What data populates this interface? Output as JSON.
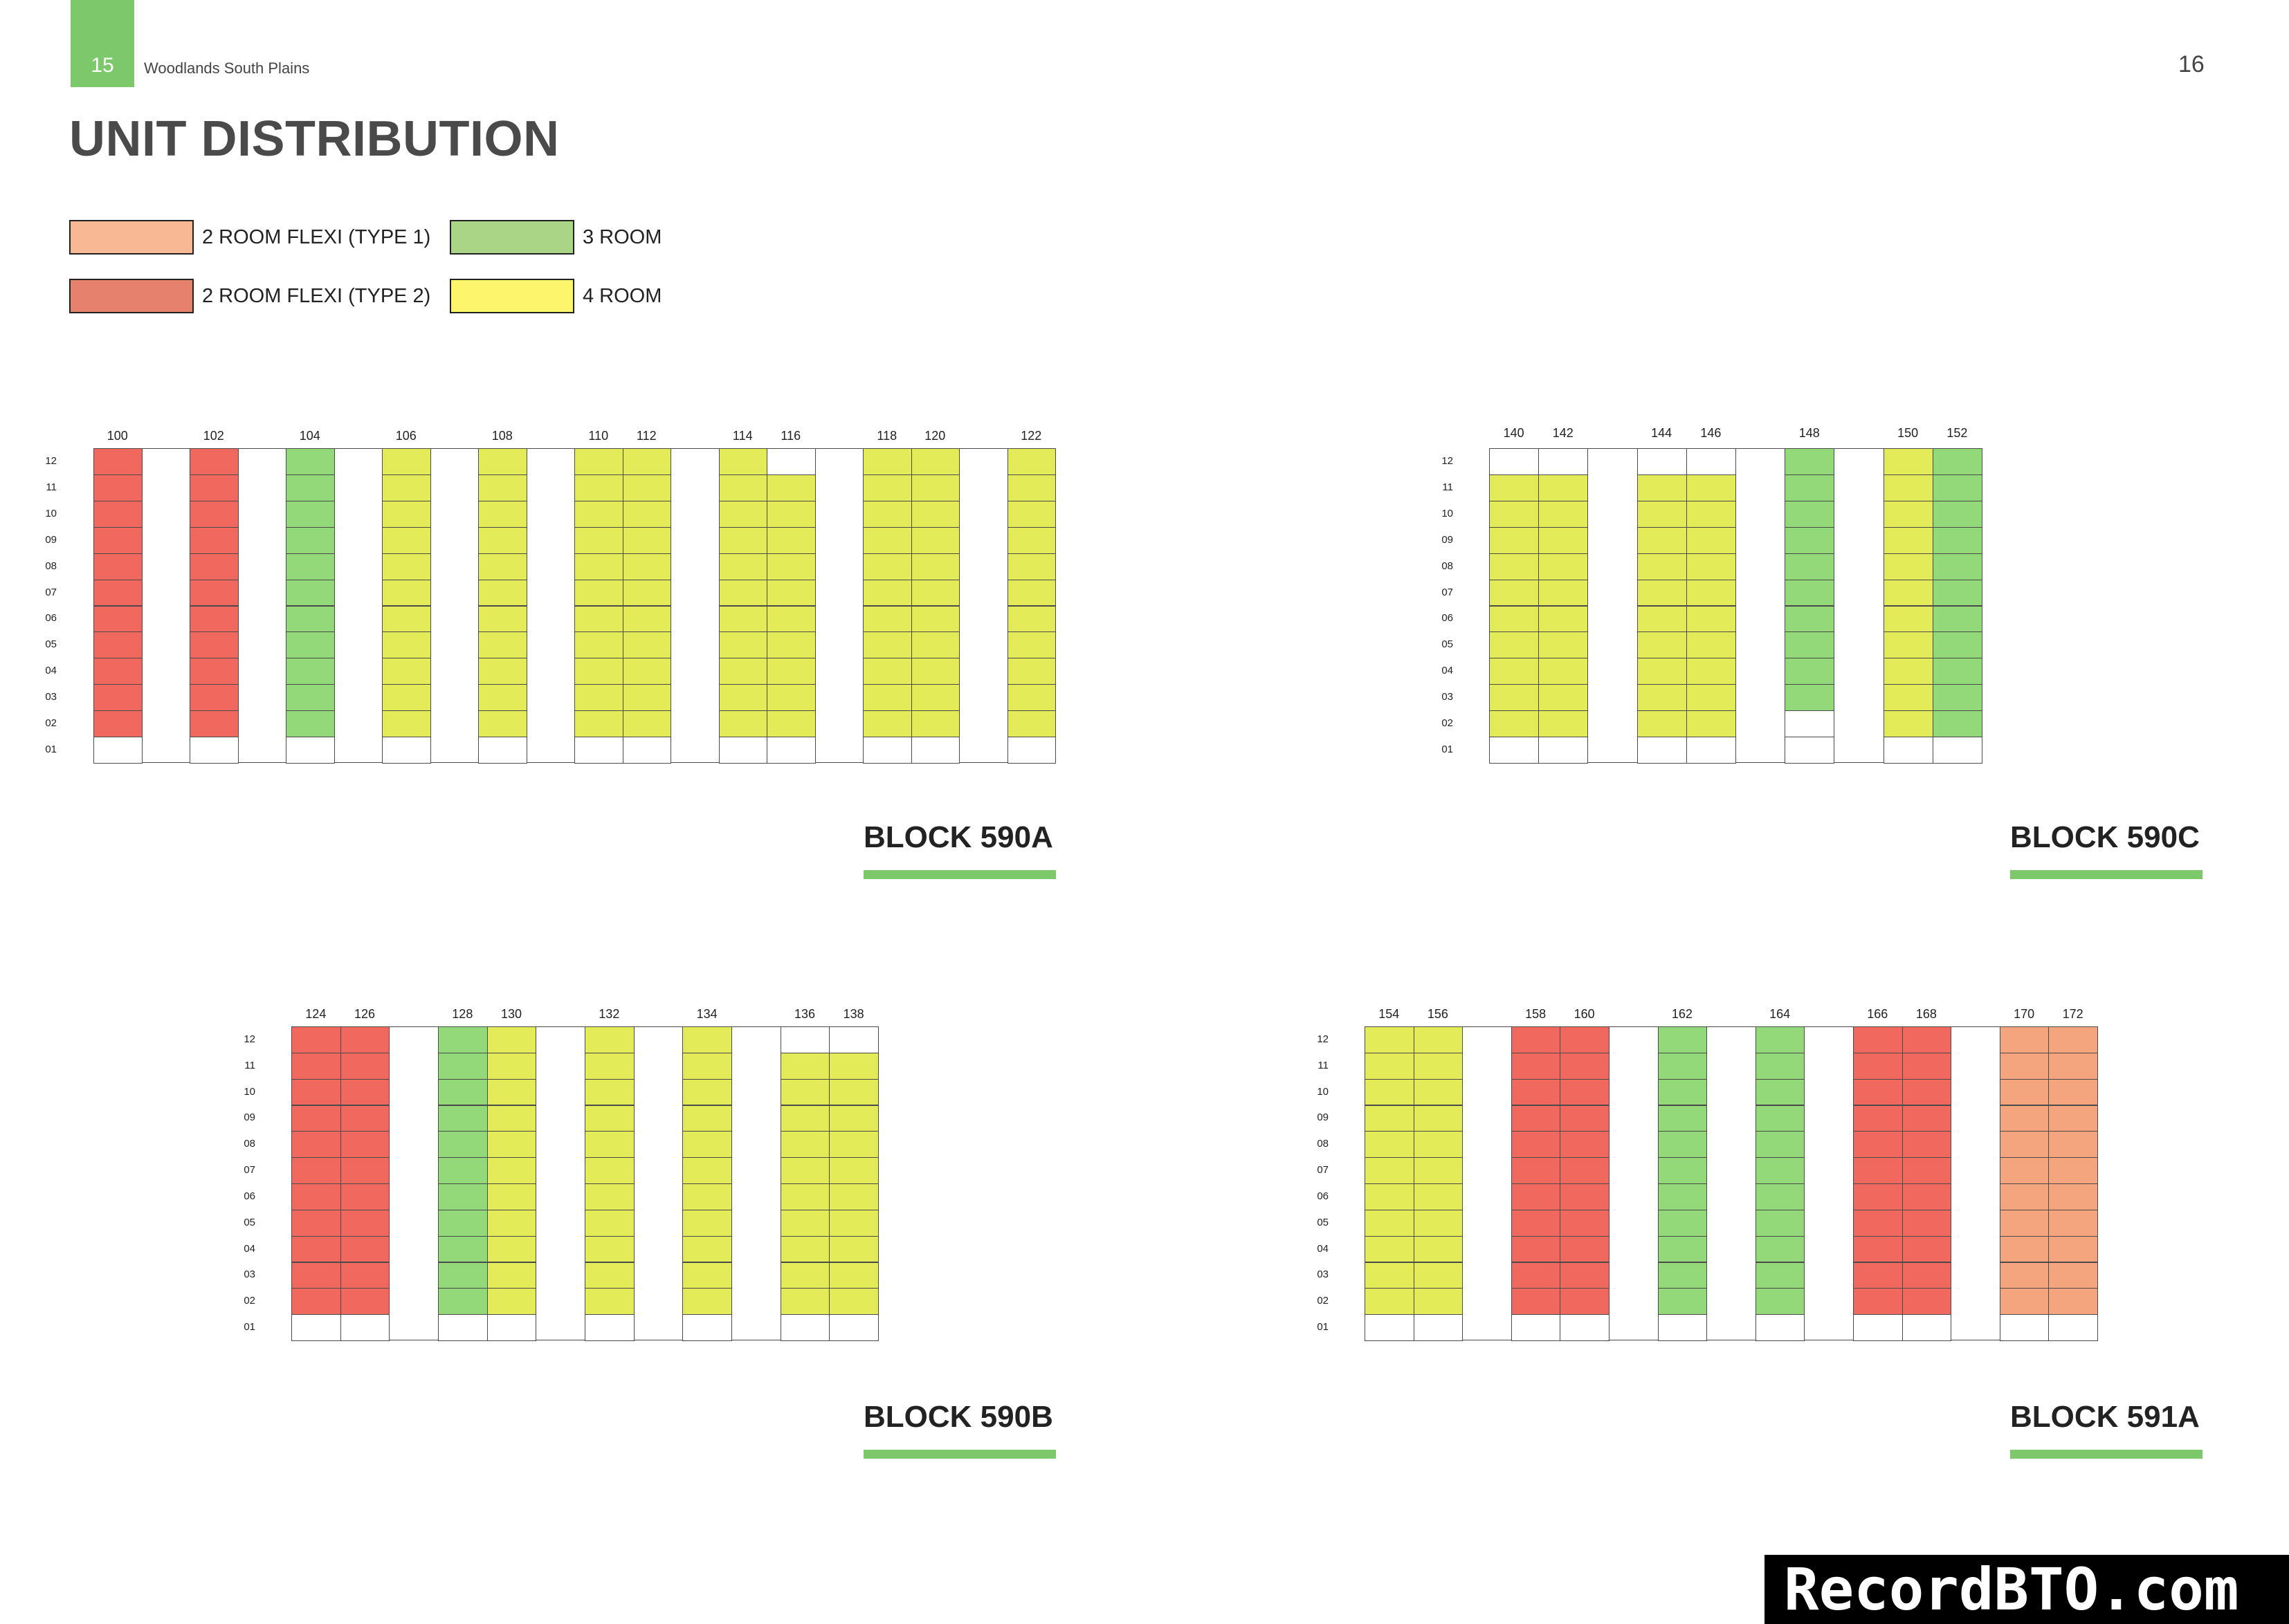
{
  "header": {
    "page_left": "15",
    "doc_title": "Woodlands South Plains",
    "page_right": "16"
  },
  "heading": "UNIT DISTRIBUTION",
  "legend": [
    {
      "label": "2 ROOM FLEXI (TYPE 1)",
      "color": "#f9b894"
    },
    {
      "label": "3 ROOM",
      "color": "#aad486"
    },
    {
      "label": "2 ROOM FLEXI (TYPE 2)",
      "color": "#e5816c"
    },
    {
      "label": "4 ROOM",
      "color": "#fdf56c"
    }
  ],
  "cell_colors": {
    "F1": "#f4a57d",
    "F2": "#f0685e",
    "R3": "#93d879",
    "R4": "#e3ec58",
    "E": "#ffffff"
  },
  "floors": [
    "12",
    "11",
    "10",
    "09",
    "08",
    "07",
    "06",
    "05",
    "04",
    "03",
    "02",
    "01"
  ],
  "blocks": [
    {
      "name": "BLOCK 590A",
      "stacks": [
        {
          "label": "100",
          "type": "F2"
        },
        {
          "label": "",
          "type": "none"
        },
        {
          "label": "102",
          "type": "F2"
        },
        {
          "label": "",
          "type": "none"
        },
        {
          "label": "104",
          "type": "R3"
        },
        {
          "label": "",
          "type": "none"
        },
        {
          "label": "106",
          "type": "R4"
        },
        {
          "label": "",
          "type": "none"
        },
        {
          "label": "108",
          "type": "R4"
        },
        {
          "label": "",
          "type": "none"
        },
        {
          "label": "110",
          "type": "R4"
        },
        {
          "label": "112",
          "type": "R4"
        },
        {
          "label": "",
          "type": "none"
        },
        {
          "label": "114",
          "type": "R4"
        },
        {
          "label": "116",
          "type": "R4",
          "top_empty": true
        },
        {
          "label": "",
          "type": "none"
        },
        {
          "label": "118",
          "type": "R4"
        },
        {
          "label": "120",
          "type": "R4"
        },
        {
          "label": "",
          "type": "none"
        },
        {
          "label": "122",
          "type": "R4"
        }
      ]
    },
    {
      "name": "BLOCK 590C",
      "stacks": [
        {
          "label": "140",
          "type": "R4",
          "top_empty": true
        },
        {
          "label": "142",
          "type": "R4",
          "top_empty": true
        },
        {
          "label": "",
          "type": "none"
        },
        {
          "label": "144",
          "type": "R4",
          "top_empty": true
        },
        {
          "label": "146",
          "type": "R4",
          "top_empty": true
        },
        {
          "label": "",
          "type": "none"
        },
        {
          "label": "148",
          "type": "R3",
          "low_empty": 2
        },
        {
          "label": "",
          "type": "none"
        },
        {
          "label": "150",
          "type": "R4"
        },
        {
          "label": "152",
          "type": "R3"
        }
      ]
    },
    {
      "name": "BLOCK 590B",
      "stacks": [
        {
          "label": "124",
          "type": "F2"
        },
        {
          "label": "126",
          "type": "F2"
        },
        {
          "label": "",
          "type": "none"
        },
        {
          "label": "128",
          "type": "R3"
        },
        {
          "label": "130",
          "type": "R4"
        },
        {
          "label": "",
          "type": "none"
        },
        {
          "label": "132",
          "type": "R4"
        },
        {
          "label": "",
          "type": "none"
        },
        {
          "label": "134",
          "type": "R4"
        },
        {
          "label": "",
          "type": "none"
        },
        {
          "label": "136",
          "type": "R4",
          "top_empty": true
        },
        {
          "label": "138",
          "type": "R4",
          "top_empty": true
        }
      ]
    },
    {
      "name": "BLOCK 591A",
      "stacks": [
        {
          "label": "154",
          "type": "R4"
        },
        {
          "label": "156",
          "type": "R4"
        },
        {
          "label": "",
          "type": "none"
        },
        {
          "label": "158",
          "type": "F2"
        },
        {
          "label": "160",
          "type": "F2"
        },
        {
          "label": "",
          "type": "none"
        },
        {
          "label": "162",
          "type": "R3"
        },
        {
          "label": "",
          "type": "none"
        },
        {
          "label": "164",
          "type": "R3"
        },
        {
          "label": "",
          "type": "none"
        },
        {
          "label": "166",
          "type": "F2"
        },
        {
          "label": "168",
          "type": "F2"
        },
        {
          "label": "",
          "type": "none"
        },
        {
          "label": "170",
          "type": "F1"
        },
        {
          "label": "172",
          "type": "F1"
        }
      ]
    }
  ],
  "watermark": "RecordBTO.com"
}
